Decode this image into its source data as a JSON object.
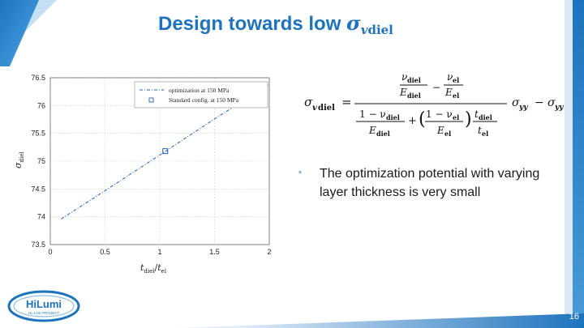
{
  "title": {
    "prefix": "Design towards low ",
    "symbol": "σ",
    "sub_v": "v",
    "sub_diel": "diel"
  },
  "bullet": {
    "marker": "▪",
    "text": "The optimization potential with varying layer thickness is very small"
  },
  "formula": {
    "lhs_sigma": "σ",
    "lhs_sub_v": "v",
    "lhs_sub": "diel",
    "equals": "=",
    "num_v1": "ν",
    "num_v1_sub": "diel",
    "num_E1": "E",
    "num_E1_sub": "diel",
    "minus": "−",
    "num_v2": "ν",
    "num_v2_sub": "el",
    "num_E2": "E",
    "num_E2_sub": "el",
    "den_one1": "1 − ν",
    "den_one1_sub": "diel",
    "den_E1": "E",
    "den_E1_sub": "diel",
    "plus": "+",
    "den_one2": "1 − ν",
    "den_one2_sub": "el",
    "den_E2": "E",
    "den_E2_sub": "el",
    "t1": "t",
    "t1_sub": "diel",
    "t2": "t",
    "t2_sub": "el",
    "sigma_yy_term": "σ",
    "sigma_yy_sub": "yy",
    "minus2": "−",
    "sigma_yy2": "σ",
    "sigma_yy2_sub": "yy"
  },
  "logo": {
    "name": "HiLumi",
    "subtitle": "HL-LHC PROJECT"
  },
  "page_number": "16",
  "chart_data": {
    "type": "line",
    "ylabel_sigma": "σ",
    "ylabel_sub": "diel",
    "xlabel_t1": "t",
    "xlabel_sub1": "diel",
    "xlabel_slash": "/",
    "xlabel_t2": "t",
    "xlabel_sub2": "el",
    "xlim": [
      0,
      2
    ],
    "ylim": [
      73.5,
      76.5
    ],
    "xticks": [
      "0",
      "0.5",
      "1",
      "1.5",
      "2"
    ],
    "xtick_values": [
      0,
      0.5,
      1,
      1.5,
      2
    ],
    "yticks": [
      "73.5",
      "74",
      "74.5",
      "75",
      "75.5",
      "76",
      "76.5"
    ],
    "ytick_values": [
      73.5,
      74,
      74.5,
      75,
      75.5,
      76,
      76.5
    ],
    "grid": true,
    "legend_position": "top-right",
    "series": [
      {
        "name": "optimization at 150 MPa",
        "style": "dash-dot",
        "color": "#1f5fbf",
        "x": [
          0.1,
          0.5,
          1.0,
          1.5,
          2.0
        ],
        "y": [
          73.96,
          74.47,
          75.11,
          75.76,
          76.38
        ]
      },
      {
        "name": "Standard config. at 150 MPa",
        "style": "square-marker",
        "color": "#1f5fbf",
        "x": [
          1.05
        ],
        "y": [
          75.18
        ]
      }
    ]
  }
}
